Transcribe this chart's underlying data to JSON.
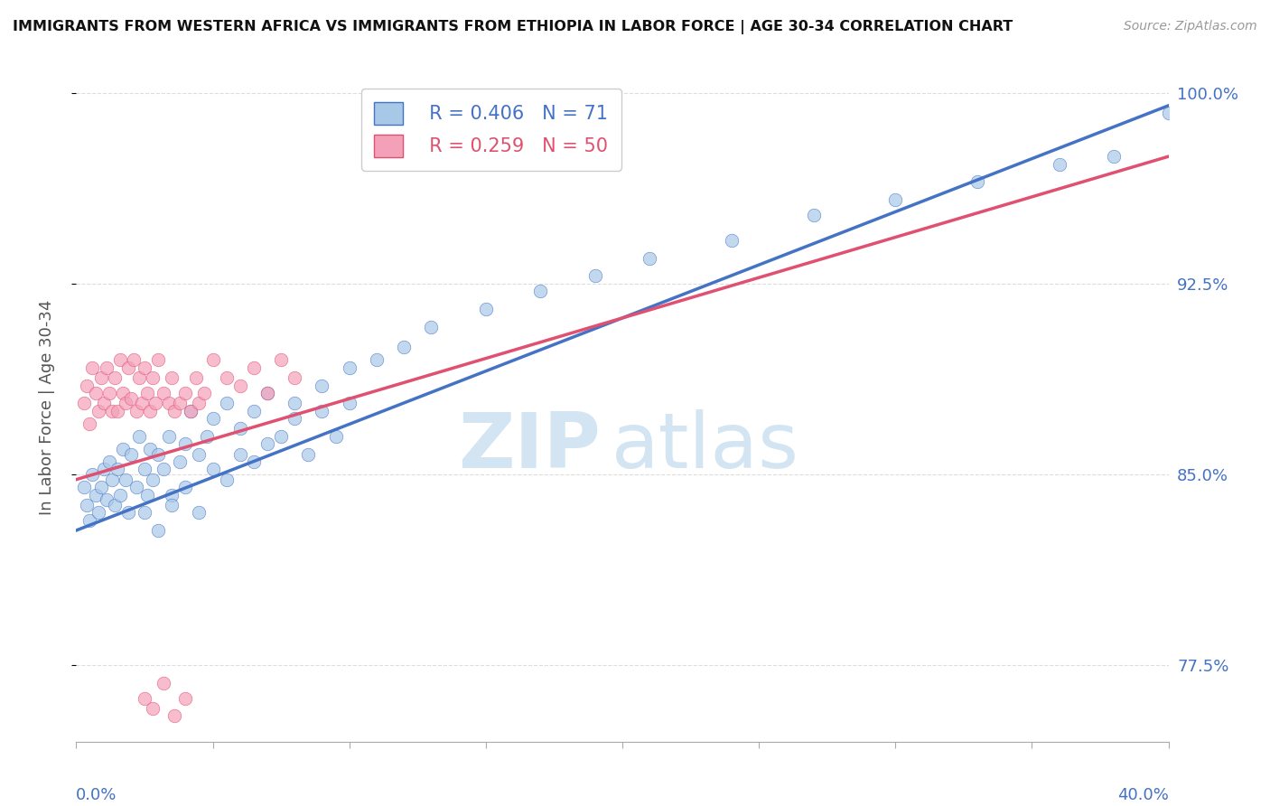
{
  "title": "IMMIGRANTS FROM WESTERN AFRICA VS IMMIGRANTS FROM ETHIOPIA IN LABOR FORCE | AGE 30-34 CORRELATION CHART",
  "source": "Source: ZipAtlas.com",
  "ylabel_label": "In Labor Force | Age 30-34",
  "x_min": 0.0,
  "x_max": 0.4,
  "y_min": 0.745,
  "y_max": 1.008,
  "yticks": [
    0.775,
    0.85,
    0.925,
    1.0
  ],
  "ytick_labels": [
    "77.5%",
    "85.0%",
    "92.5%",
    "100.0%"
  ],
  "legend_blue_r": "R = 0.406",
  "legend_blue_n": "N = 71",
  "legend_pink_r": "R = 0.259",
  "legend_pink_n": "N = 50",
  "color_blue": "#a8c8e8",
  "color_pink": "#f4a0b8",
  "color_blue_line": "#4472c4",
  "color_pink_line": "#e05070",
  "color_axis_labels": "#4472c4",
  "watermark_zip": "ZIP",
  "watermark_atlas": "atlas",
  "blue_line_x0": 0.0,
  "blue_line_y0": 0.828,
  "blue_line_x1": 0.4,
  "blue_line_y1": 0.995,
  "pink_line_x0": 0.0,
  "pink_line_y0": 0.848,
  "pink_line_x1": 0.4,
  "pink_line_y1": 0.975,
  "blue_x": [
    0.003,
    0.004,
    0.005,
    0.006,
    0.007,
    0.008,
    0.009,
    0.01,
    0.011,
    0.012,
    0.013,
    0.014,
    0.015,
    0.016,
    0.017,
    0.018,
    0.019,
    0.02,
    0.022,
    0.023,
    0.025,
    0.026,
    0.027,
    0.028,
    0.03,
    0.032,
    0.034,
    0.035,
    0.038,
    0.04,
    0.042,
    0.045,
    0.048,
    0.05,
    0.055,
    0.06,
    0.065,
    0.07,
    0.08,
    0.09,
    0.1,
    0.11,
    0.12,
    0.13,
    0.15,
    0.17,
    0.19,
    0.21,
    0.24,
    0.27,
    0.3,
    0.33,
    0.36,
    0.38,
    0.4,
    0.025,
    0.03,
    0.035,
    0.04,
    0.045,
    0.05,
    0.055,
    0.06,
    0.065,
    0.07,
    0.075,
    0.08,
    0.085,
    0.09,
    0.095,
    0.1
  ],
  "blue_y": [
    0.845,
    0.838,
    0.832,
    0.85,
    0.842,
    0.835,
    0.845,
    0.852,
    0.84,
    0.855,
    0.848,
    0.838,
    0.852,
    0.842,
    0.86,
    0.848,
    0.835,
    0.858,
    0.845,
    0.865,
    0.852,
    0.842,
    0.86,
    0.848,
    0.858,
    0.852,
    0.865,
    0.842,
    0.855,
    0.862,
    0.875,
    0.858,
    0.865,
    0.872,
    0.878,
    0.868,
    0.875,
    0.882,
    0.878,
    0.885,
    0.892,
    0.895,
    0.9,
    0.908,
    0.915,
    0.922,
    0.928,
    0.935,
    0.942,
    0.952,
    0.958,
    0.965,
    0.972,
    0.975,
    0.992,
    0.835,
    0.828,
    0.838,
    0.845,
    0.835,
    0.852,
    0.848,
    0.858,
    0.855,
    0.862,
    0.865,
    0.872,
    0.858,
    0.875,
    0.865,
    0.878
  ],
  "pink_x": [
    0.003,
    0.004,
    0.005,
    0.006,
    0.007,
    0.008,
    0.009,
    0.01,
    0.011,
    0.012,
    0.013,
    0.014,
    0.015,
    0.016,
    0.017,
    0.018,
    0.019,
    0.02,
    0.021,
    0.022,
    0.023,
    0.024,
    0.025,
    0.026,
    0.027,
    0.028,
    0.029,
    0.03,
    0.032,
    0.034,
    0.035,
    0.036,
    0.038,
    0.04,
    0.042,
    0.044,
    0.045,
    0.047,
    0.05,
    0.055,
    0.06,
    0.065,
    0.07,
    0.075,
    0.08,
    0.025,
    0.028,
    0.032,
    0.036,
    0.04
  ],
  "pink_y": [
    0.878,
    0.885,
    0.87,
    0.892,
    0.882,
    0.875,
    0.888,
    0.878,
    0.892,
    0.882,
    0.875,
    0.888,
    0.875,
    0.895,
    0.882,
    0.878,
    0.892,
    0.88,
    0.895,
    0.875,
    0.888,
    0.878,
    0.892,
    0.882,
    0.875,
    0.888,
    0.878,
    0.895,
    0.882,
    0.878,
    0.888,
    0.875,
    0.878,
    0.882,
    0.875,
    0.888,
    0.878,
    0.882,
    0.895,
    0.888,
    0.885,
    0.892,
    0.882,
    0.895,
    0.888,
    0.762,
    0.758,
    0.768,
    0.755,
    0.762
  ]
}
